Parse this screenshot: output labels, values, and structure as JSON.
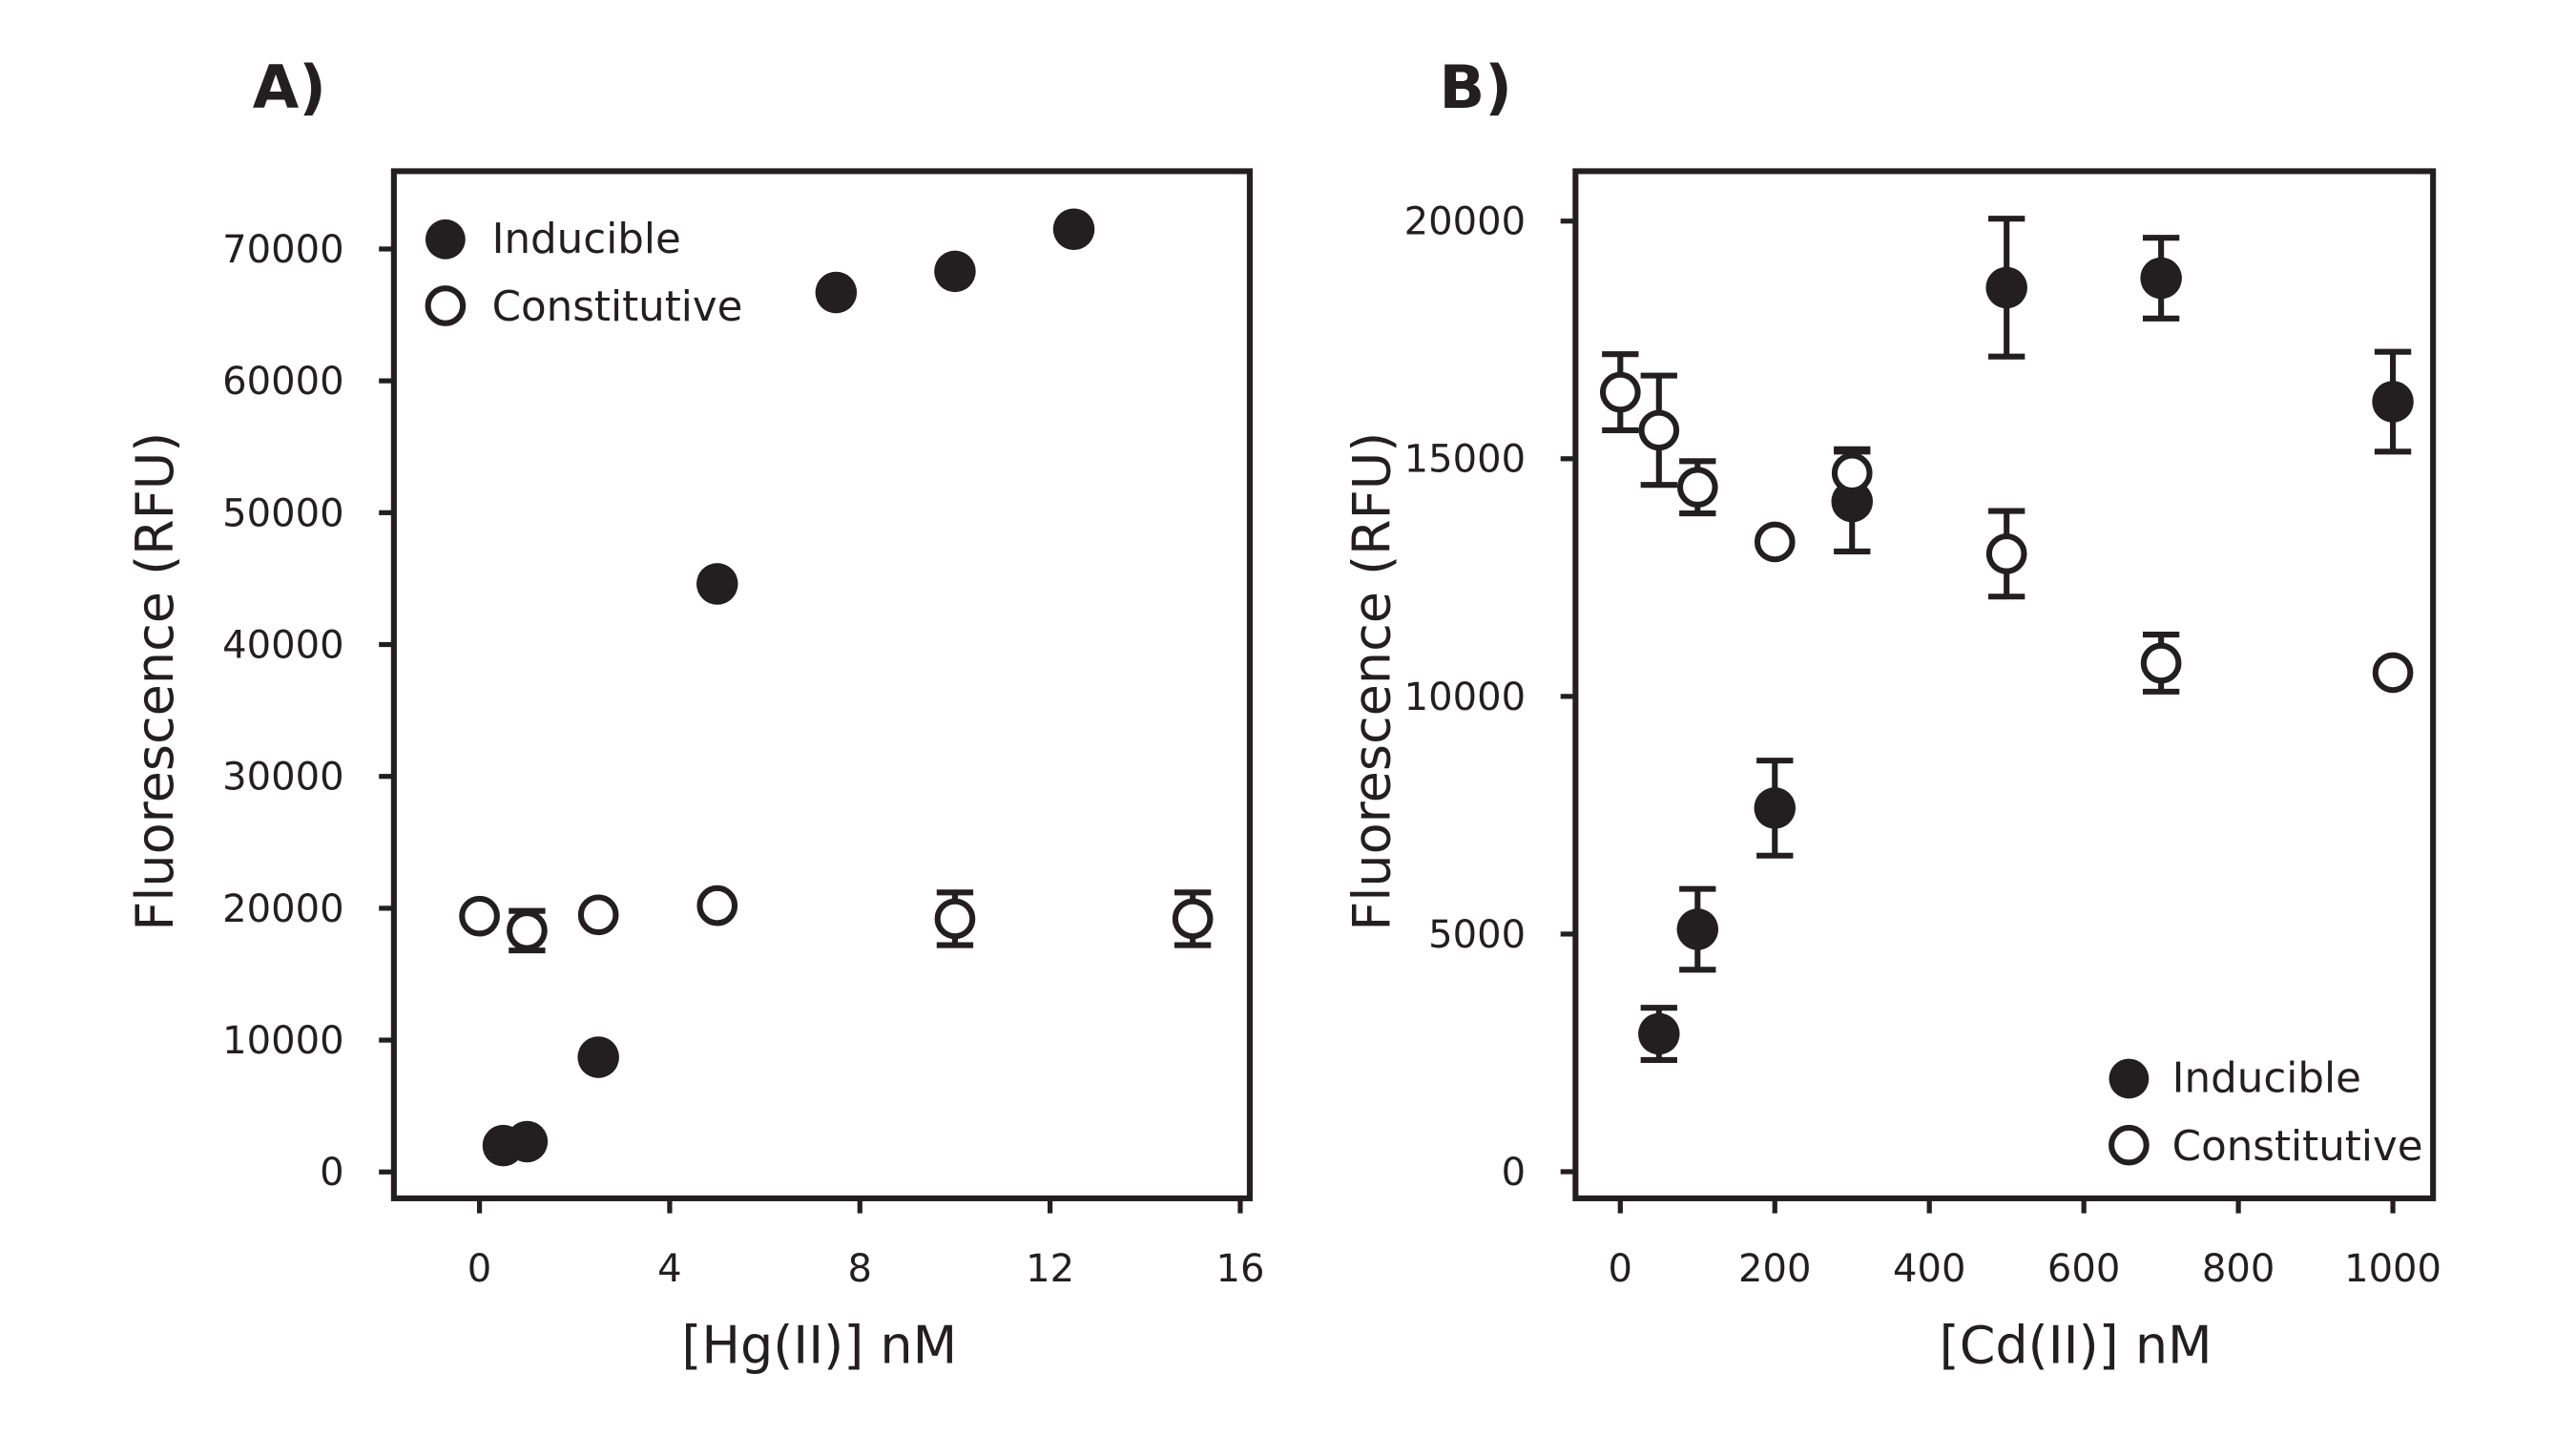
{
  "chart_data": [
    {
      "type": "scatter",
      "panel_label": "A)",
      "xlabel": "[Hg(II)] nM",
      "ylabel": "Fluorescence (RFU)",
      "xlim": [
        -1.8,
        16.2
      ],
      "ylim": [
        -2000,
        75900
      ],
      "xticks": [
        0,
        4,
        8,
        12,
        16
      ],
      "yticks": [
        0,
        10000,
        20000,
        30000,
        40000,
        50000,
        60000,
        70000
      ],
      "grid": false,
      "legend_position": "top-left",
      "series": [
        {
          "name": "Inducible",
          "marker": "filled-circle",
          "x": [
            0.5,
            1,
            2.5,
            5,
            7.5,
            10,
            12.5
          ],
          "y": [
            2000,
            2300,
            8700,
            44600,
            66700,
            68300,
            71500
          ],
          "err": [
            0,
            0,
            0,
            0,
            0,
            0,
            0
          ]
        },
        {
          "name": "Constitutive",
          "marker": "open-circle",
          "x": [
            0,
            1,
            2.5,
            5,
            10,
            15
          ],
          "y": [
            19400,
            18300,
            19500,
            20200,
            19200,
            19200
          ],
          "err": [
            0,
            1500,
            0,
            0,
            2000,
            2000
          ]
        }
      ]
    },
    {
      "type": "scatter",
      "panel_label": "B)",
      "xlabel": "[Cd(II)] nM",
      "ylabel": "Fluorescence (RFU)",
      "xlim": [
        -58,
        1052
      ],
      "ylim": [
        -560,
        21050
      ],
      "xticks": [
        0,
        200,
        400,
        600,
        800,
        1000
      ],
      "yticks": [
        0,
        5000,
        10000,
        15000,
        20000
      ],
      "grid": false,
      "legend_position": "bottom-right",
      "series": [
        {
          "name": "Inducible",
          "marker": "filled-circle",
          "x": [
            50,
            100,
            200,
            300,
            500,
            700,
            1000
          ],
          "y": [
            2900,
            5100,
            7650,
            14100,
            18600,
            18800,
            16200
          ],
          "err": [
            550,
            850,
            1000,
            1050,
            1450,
            850,
            1050
          ]
        },
        {
          "name": "Constitutive",
          "marker": "open-circle",
          "x": [
            0,
            50,
            100,
            200,
            300,
            500,
            700,
            1000
          ],
          "y": [
            16400,
            15600,
            14400,
            13250,
            14700,
            13000,
            10700,
            10500
          ],
          "err": [
            800,
            1150,
            550,
            0,
            500,
            900,
            600,
            0
          ]
        }
      ]
    }
  ],
  "colors": {
    "ink": "#231f20",
    "background": "#ffffff"
  }
}
